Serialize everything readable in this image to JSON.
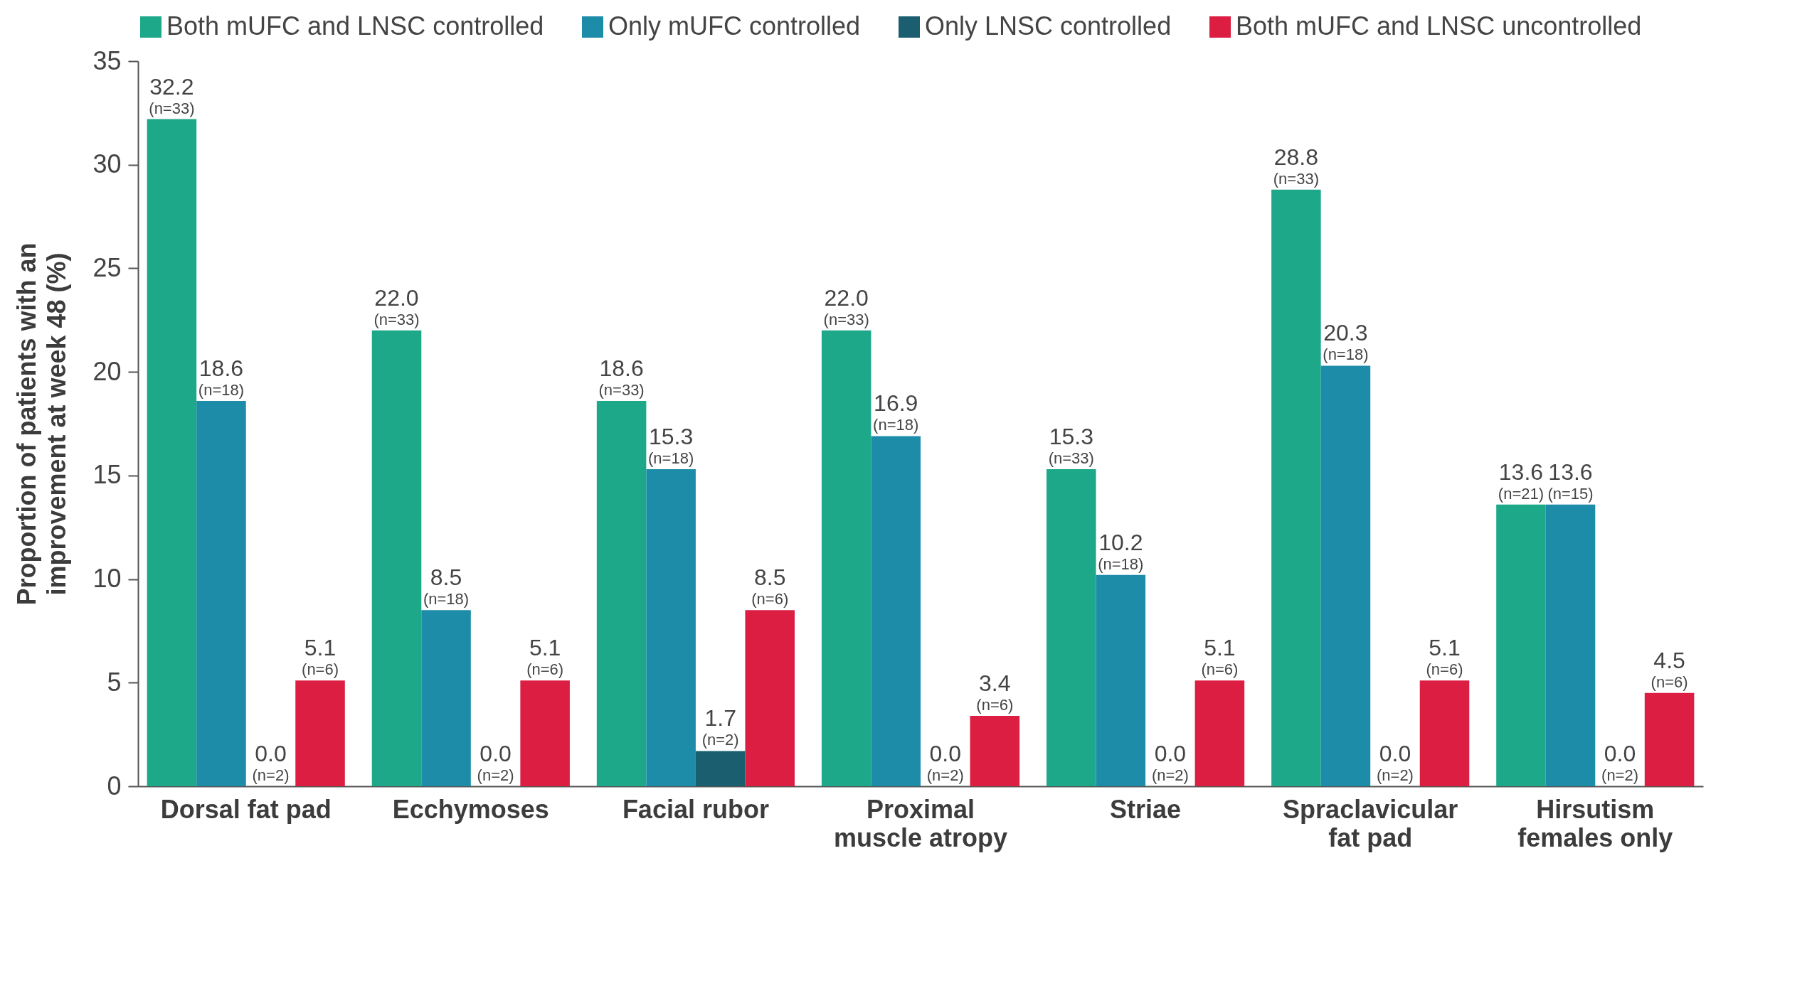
{
  "chart_data": {
    "type": "bar",
    "ylabel": "Proportion of patients with an\nimprovement at week 48 (%)",
    "categories": [
      "Dorsal fat pad",
      "Ecchymoses",
      "Facial rubor",
      "Proximal\nmuscle atropy",
      "Striae",
      "Spraclavicular\nfat pad",
      "Hirsutism\nfemales only"
    ],
    "ylim": [
      0,
      35
    ],
    "yticks": [
      0,
      5,
      10,
      15,
      20,
      25,
      30,
      35
    ],
    "grid": false,
    "legend": "top",
    "series": [
      {
        "name": "Both mUFC and LNSC controlled",
        "color": "#1ea88a",
        "values": [
          32.2,
          22.0,
          18.6,
          22.0,
          15.3,
          28.8,
          13.6
        ],
        "value_labels": [
          "32.2\n(n=33)",
          "22.0\n(n=33)",
          "18.6\n(n=33)",
          "22.0\n(n=33)",
          "15.3\n(n=33)",
          "28.8\n(n=33)",
          "13.6\n(n=21)"
        ]
      },
      {
        "name": "Only mUFC controlled",
        "color": "#1d8ca9",
        "values": [
          18.6,
          8.5,
          15.3,
          16.9,
          10.2,
          20.3,
          13.6
        ],
        "value_labels": [
          "18.6\n(n=18)",
          "8.5\n(n=18)",
          "15.3\n(n=18)",
          "16.9\n(n=18)",
          "10.2\n(n=18)",
          "20.3\n(n=18)",
          "13.6\n(n=15)"
        ]
      },
      {
        "name": "Only LNSC controlled",
        "color": "#1a5e70",
        "values": [
          0.0,
          0.0,
          1.7,
          0.0,
          0.0,
          0.0,
          0.0
        ],
        "value_labels": [
          "0.0\n(n=2)",
          "0.0\n(n=2)",
          "1.7\n(n=2)",
          "0.0\n(n=2)",
          "0.0\n(n=2)",
          "0.0\n(n=2)",
          "0.0\n(n=2)"
        ]
      },
      {
        "name": "Both mUFC and LNSC uncontrolled",
        "color": "#db1e42",
        "values": [
          5.1,
          5.1,
          8.5,
          3.4,
          5.1,
          5.1,
          4.5
        ],
        "value_labels": [
          "5.1\n(n=6)",
          "5.1\n(n=6)",
          "8.5\n(n=6)",
          "3.4\n(n=6)",
          "5.1\n(n=6)",
          "5.1\n(n=6)",
          "4.5\n(n=6)"
        ]
      }
    ]
  }
}
